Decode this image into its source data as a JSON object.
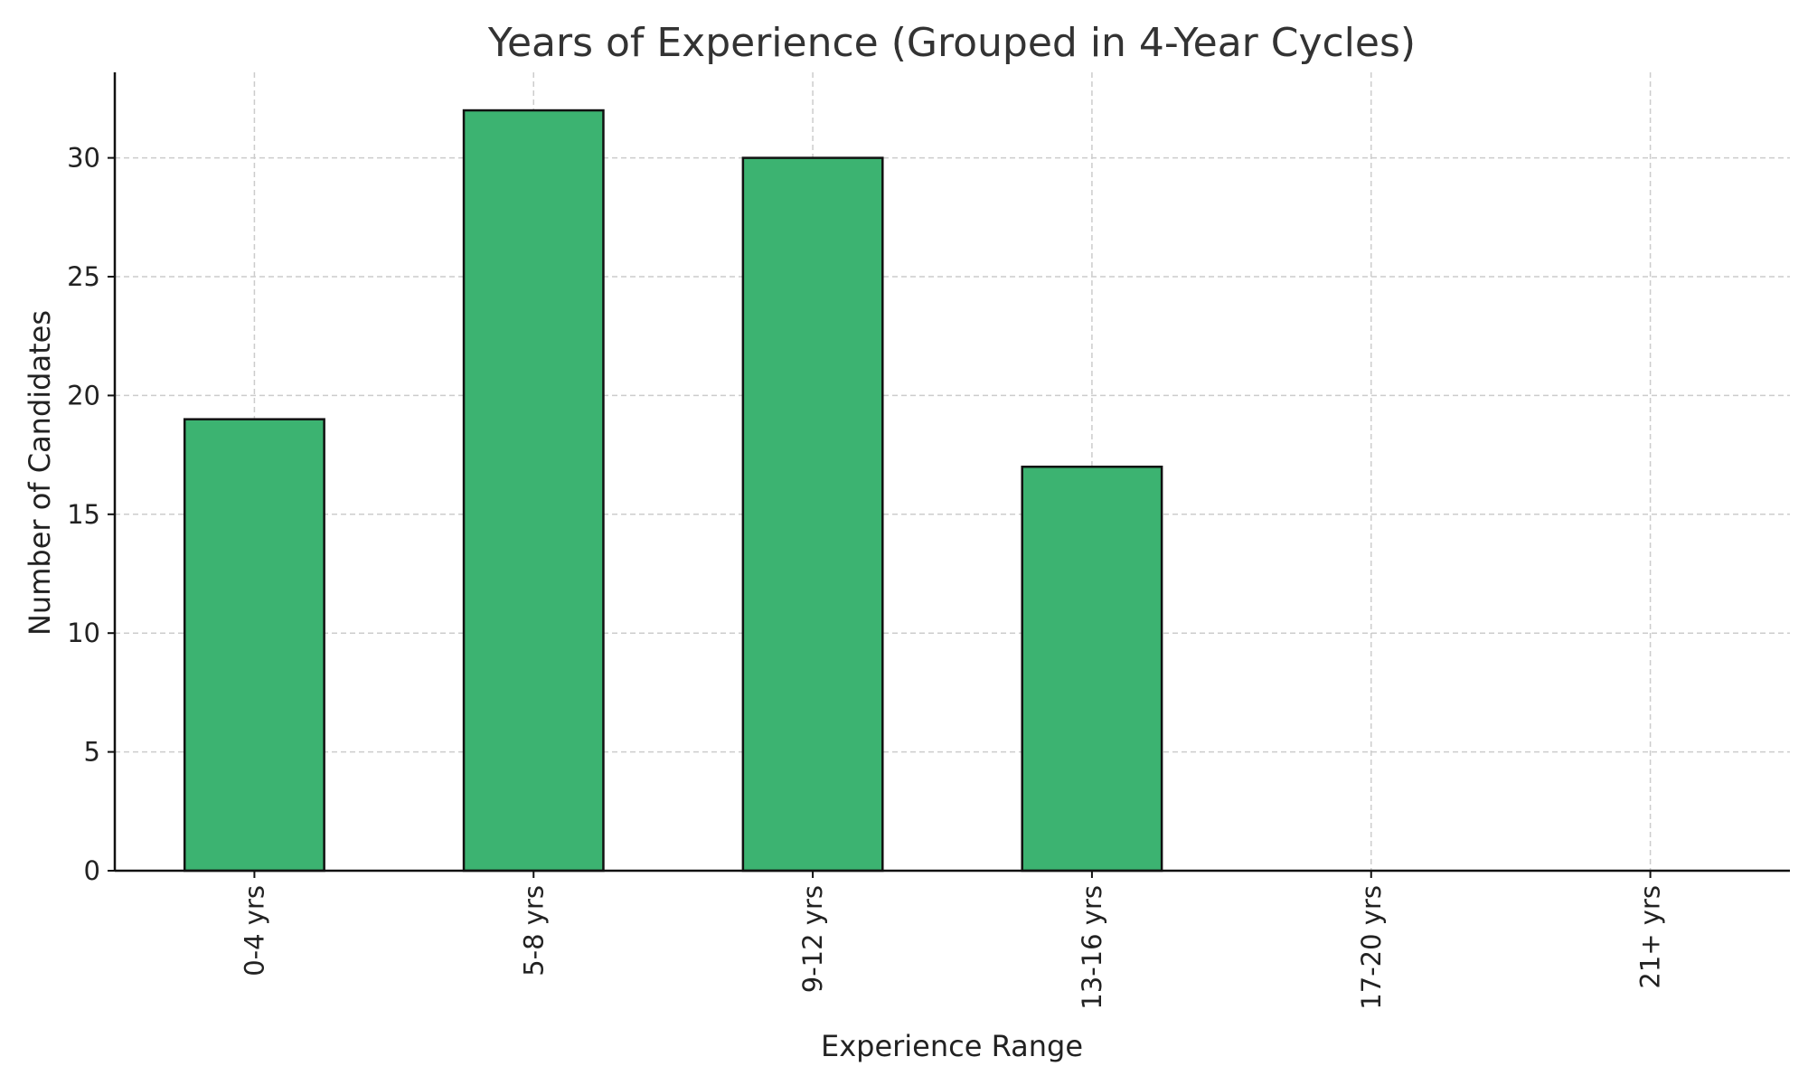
{
  "chart_data": {
    "type": "bar",
    "title": "Years of Experience (Grouped in 4-Year Cycles)",
    "xlabel": "Experience Range",
    "ylabel": "Number of Candidates",
    "categories": [
      "0-4 yrs",
      "5-8 yrs",
      "9-12 yrs",
      "13-16 yrs",
      "17-20 yrs",
      "21+ yrs"
    ],
    "values": [
      19,
      32,
      30,
      17,
      0,
      0
    ],
    "ylim": [
      0,
      33.6
    ],
    "yticks": [
      0,
      5,
      10,
      15,
      20,
      25,
      30
    ],
    "grid": true,
    "bar_color": "#3cb371",
    "edge_color": "#111111",
    "grid_color": "#cccccc",
    "x_tick_rotation": "vertical",
    "legend": false
  }
}
